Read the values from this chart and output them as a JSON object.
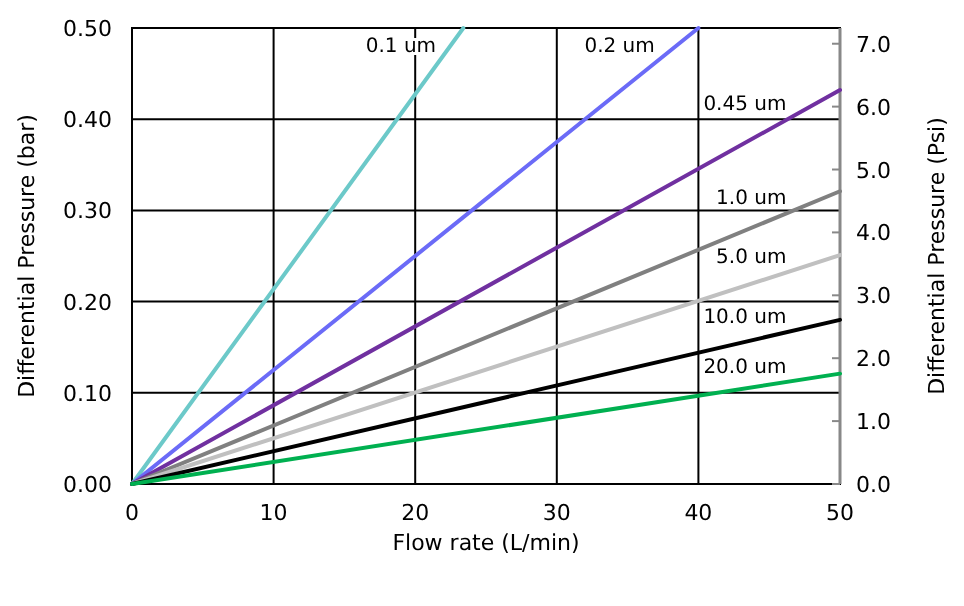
{
  "chart_data": {
    "type": "line",
    "xlabel": "Flow rate (L/min)",
    "ylabel": "Differential Pressure (bar)",
    "y2label": "Differential Pressure (Psi)",
    "xlim": [
      0,
      50
    ],
    "xticks": [
      0,
      10,
      20,
      30,
      40,
      50
    ],
    "ylim": [
      0,
      0.5
    ],
    "yticks": [
      {
        "value": 0,
        "label": "0.00"
      },
      {
        "value": 0.1,
        "label": "0.10"
      },
      {
        "value": 0.2,
        "label": "0.20"
      },
      {
        "value": 0.3,
        "label": "0.30"
      },
      {
        "value": 0.4,
        "label": "0.40"
      },
      {
        "value": 0.5,
        "label": "0.50"
      }
    ],
    "y2lim": [
      0,
      7.25
    ],
    "y2ticks": [
      {
        "value": 0,
        "label": "0.0"
      },
      {
        "value": 1,
        "label": "1.0"
      },
      {
        "value": 2,
        "label": "2.0"
      },
      {
        "value": 3,
        "label": "3.0"
      },
      {
        "value": 4,
        "label": "4.0"
      },
      {
        "value": 5,
        "label": "5.0"
      },
      {
        "value": 6,
        "label": "6.0"
      },
      {
        "value": 7,
        "label": "7.0"
      }
    ],
    "grid": true,
    "legend": false,
    "marker": "none",
    "line_style": "solid",
    "series": [
      {
        "name": "0.1 um",
        "color": "#6cc9c9",
        "x": [
          0,
          23.4
        ],
        "values": [
          0,
          0.5
        ]
      },
      {
        "name": "0.2 um",
        "color": "#6b6bf7",
        "x": [
          0,
          40
        ],
        "values": [
          0,
          0.5
        ]
      },
      {
        "name": "0.45 um",
        "color": "#7030a0",
        "x": [
          0,
          50
        ],
        "values": [
          0,
          0.432
        ]
      },
      {
        "name": "1.0 um",
        "color": "#808080",
        "x": [
          0,
          50
        ],
        "values": [
          0,
          0.321
        ]
      },
      {
        "name": "5.0 um",
        "color": "#c0c0c0",
        "x": [
          0,
          50
        ],
        "values": [
          0,
          0.251
        ]
      },
      {
        "name": "10.0 um",
        "color": "#000000",
        "x": [
          0,
          50
        ],
        "values": [
          0,
          0.18
        ]
      },
      {
        "name": "20.0 um",
        "color": "#00b050",
        "x": [
          0,
          50
        ],
        "values": [
          0,
          0.121
        ]
      }
    ]
  }
}
